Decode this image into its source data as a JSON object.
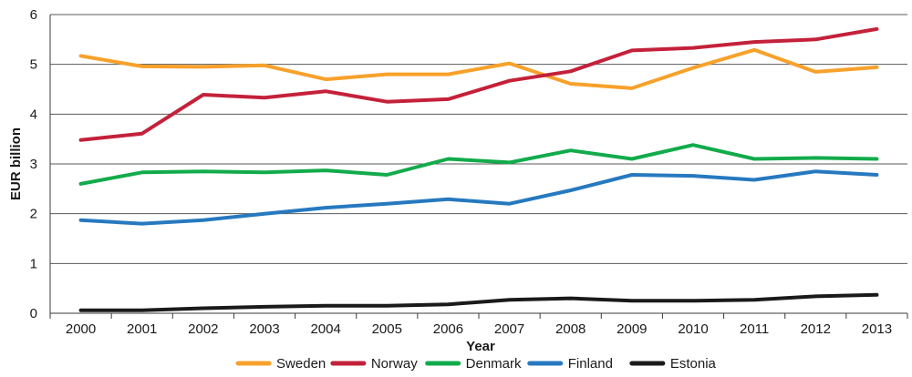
{
  "chart_data": {
    "type": "line",
    "title": "",
    "xlabel": "Year",
    "ylabel": "EUR billion",
    "categories": [
      "2000",
      "2001",
      "2002",
      "2003",
      "2004",
      "2005",
      "2006",
      "2007",
      "2008",
      "2009",
      "2010",
      "2011",
      "2012",
      "2013"
    ],
    "ylim": [
      0,
      6
    ],
    "yticks": [
      "0",
      "1",
      "2",
      "3",
      "4",
      "5",
      "6"
    ],
    "grid": "horizontal",
    "legend_position": "bottom",
    "series": [
      {
        "name": "Sweden",
        "color": "#f7a12b",
        "values": [
          5.17,
          4.96,
          4.95,
          4.98,
          4.7,
          4.8,
          4.8,
          5.02,
          4.61,
          4.52,
          4.93,
          5.29,
          4.85,
          4.94
        ]
      },
      {
        "name": "Norway",
        "color": "#c4213a",
        "values": [
          3.48,
          3.61,
          4.39,
          4.33,
          4.46,
          4.25,
          4.3,
          4.67,
          4.86,
          5.28,
          5.33,
          5.45,
          5.5,
          5.71
        ]
      },
      {
        "name": "Denmark",
        "color": "#12ab4b",
        "values": [
          2.6,
          2.83,
          2.85,
          2.83,
          2.87,
          2.78,
          3.1,
          3.03,
          3.27,
          3.1,
          3.38,
          3.1,
          3.12,
          3.1
        ]
      },
      {
        "name": "Finland",
        "color": "#2679bf",
        "values": [
          1.87,
          1.8,
          1.87,
          2.0,
          2.12,
          2.2,
          2.29,
          2.2,
          2.47,
          2.78,
          2.76,
          2.68,
          2.85,
          2.78
        ]
      },
      {
        "name": "Estonia",
        "color": "#1a1a1a",
        "values": [
          0.06,
          0.06,
          0.1,
          0.13,
          0.15,
          0.15,
          0.18,
          0.27,
          0.3,
          0.25,
          0.25,
          0.27,
          0.34,
          0.37
        ]
      }
    ]
  }
}
